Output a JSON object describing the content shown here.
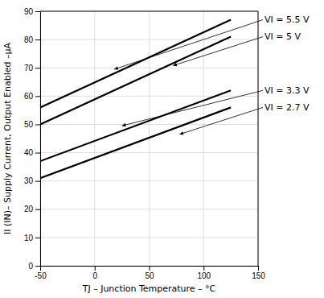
{
  "chart_data": {
    "type": "line",
    "x": [
      -50,
      125
    ],
    "series": [
      {
        "values": [
          56,
          87
        ]
      },
      {
        "values": [
          50,
          81
        ]
      },
      {
        "values": [
          37,
          62
        ]
      },
      {
        "values": [
          31,
          56
        ]
      }
    ],
    "color": "#000000",
    "xlim": [
      -50,
      150
    ],
    "ylim": [
      0,
      90
    ],
    "xticks": [
      -50,
      0,
      50,
      100,
      150
    ],
    "yticks": [
      0,
      10,
      20,
      30,
      40,
      50,
      60,
      70,
      80,
      90
    ],
    "xlabel": "TJ – Junction Temperature – °C",
    "ylabel": "II (IN)– Supply Current, Output Enabled –μA",
    "grid": true,
    "annotations": [
      {
        "text": "VI = 5.5 V",
        "x": 18,
        "y": 69.5
      },
      {
        "text": "VI = 5 V",
        "x": 72,
        "y": 70.8
      },
      {
        "text": "VI = 3.3 V",
        "x": 25,
        "y": 49.5
      },
      {
        "text": "VI = 2.7 V",
        "x": 78,
        "y": 46.5
      }
    ]
  }
}
